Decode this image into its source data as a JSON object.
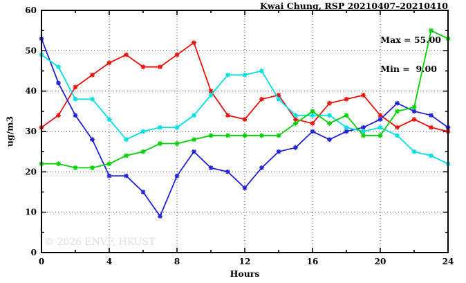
{
  "chart_data": {
    "type": "line",
    "title": "Kwai Chung, RSP 20210407–20210410",
    "xlabel": "Hours",
    "ylabel": "ug/m3",
    "xlim": [
      0,
      24
    ],
    "ylim": [
      0,
      60
    ],
    "xticks": [
      0,
      4,
      8,
      12,
      16,
      20,
      24
    ],
    "yticks": [
      0,
      10,
      20,
      30,
      40,
      50,
      60
    ],
    "x_minor_step": 2,
    "y_minor_step": 5,
    "grid": true,
    "legend_position": "top-right-inside",
    "annotations": [
      "Max = 55.00",
      "Min =  9.00"
    ],
    "watermark": "© 2026 ENVF, HKUST",
    "x": [
      0,
      1,
      2,
      3,
      4,
      5,
      6,
      7,
      8,
      9,
      10,
      11,
      12,
      13,
      14,
      15,
      16,
      17,
      18,
      19,
      20,
      21,
      22,
      23,
      24
    ],
    "series": [
      {
        "name": "red-series",
        "color": "#e4140c",
        "values": [
          31,
          34,
          41,
          44,
          47,
          49,
          46,
          46,
          49,
          52,
          40,
          34,
          33,
          38,
          39,
          33,
          32,
          37,
          38,
          39,
          34,
          31,
          33,
          31,
          30
        ]
      },
      {
        "name": "blue-series",
        "color": "#2222d0",
        "values": [
          53,
          42,
          34,
          28,
          19,
          19,
          15,
          9,
          19,
          25,
          21,
          20,
          16,
          21,
          25,
          26,
          30,
          28,
          30,
          31,
          33,
          37,
          35,
          34,
          31
        ]
      },
      {
        "name": "cyan-series",
        "color": "#00dde0",
        "values": [
          49,
          46,
          38,
          38,
          33,
          28,
          30,
          31,
          31,
          34,
          39,
          44,
          44,
          45,
          38,
          34,
          34,
          34,
          31,
          30,
          31,
          29,
          25,
          24,
          22
        ]
      },
      {
        "name": "green-series",
        "color": "#00cf00",
        "values": [
          22,
          22,
          21,
          21,
          22,
          24,
          25,
          27,
          27,
          28,
          29,
          29,
          29,
          29,
          29,
          32,
          35,
          32,
          34,
          29,
          29,
          35,
          36,
          55,
          53
        ]
      }
    ]
  }
}
